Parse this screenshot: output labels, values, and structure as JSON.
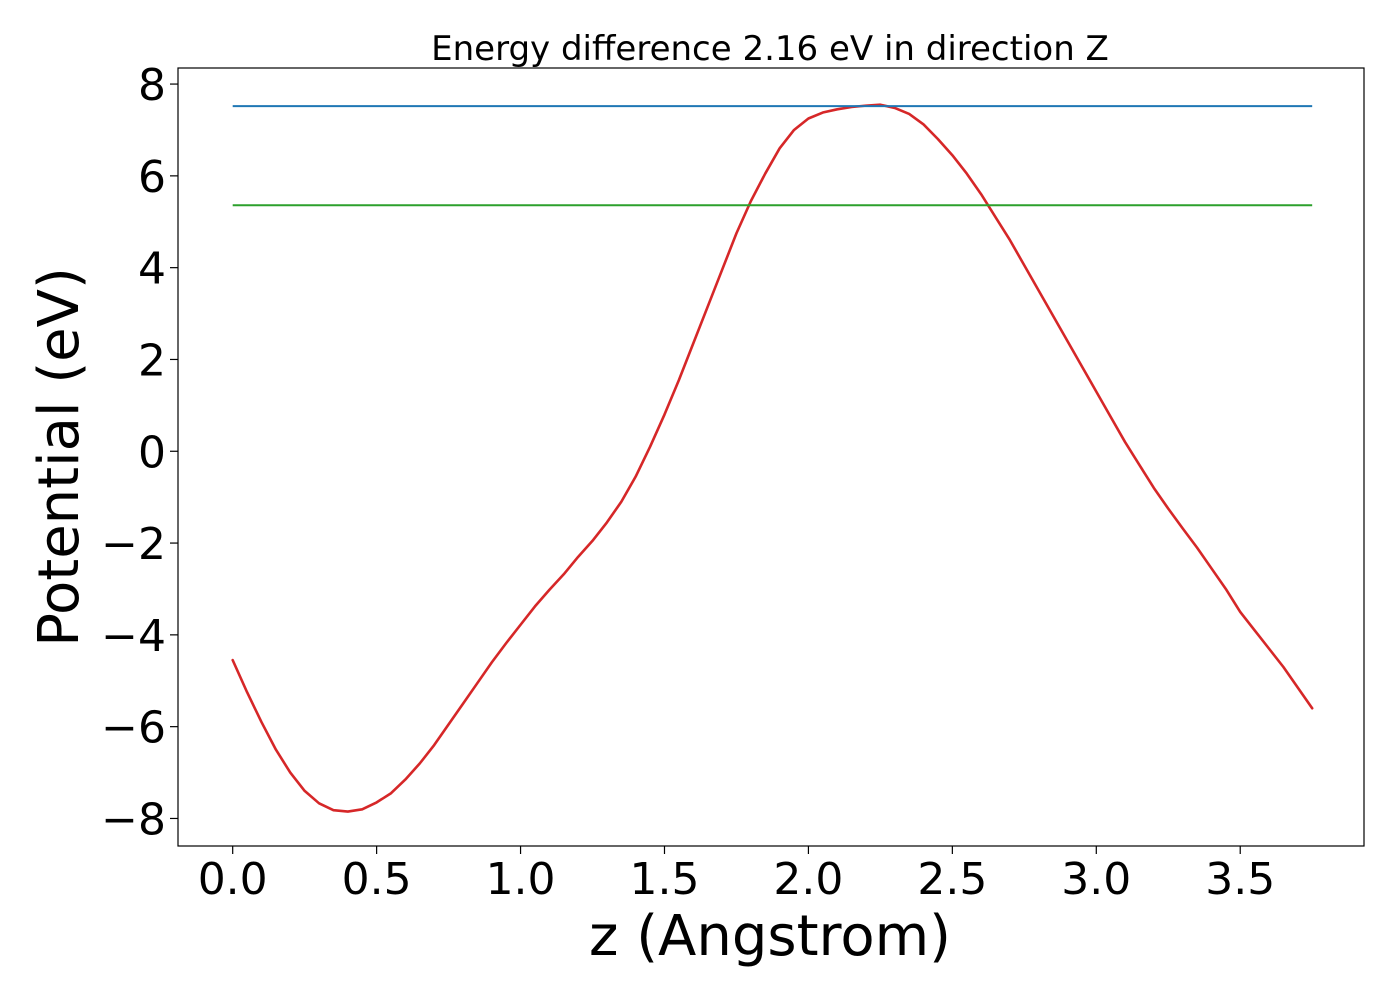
{
  "chart_data": {
    "type": "line",
    "title": "Energy difference 2.16 eV in direction Z",
    "xlabel": "z (Angstrom)",
    "ylabel": "Potential (eV)",
    "xlim": [
      -0.19,
      3.93
    ],
    "ylim": [
      -8.6,
      8.35
    ],
    "grid": false,
    "x_ticks": [
      0.0,
      0.5,
      1.0,
      1.5,
      2.0,
      2.5,
      3.0,
      3.5
    ],
    "x_tick_labels": [
      "0.0",
      "0.5",
      "1.0",
      "1.5",
      "2.0",
      "2.5",
      "3.0",
      "3.5"
    ],
    "y_ticks": [
      -8,
      -6,
      -4,
      -2,
      0,
      2,
      4,
      6,
      8
    ],
    "y_tick_labels": [
      "−8",
      "−6",
      "−4",
      "−2",
      "0",
      "2",
      "4",
      "6",
      "8"
    ],
    "series": [
      {
        "color": "#d62728",
        "style": "line",
        "x": [
          0.0,
          0.05,
          0.1,
          0.15,
          0.2,
          0.25,
          0.3,
          0.35,
          0.4,
          0.45,
          0.5,
          0.55,
          0.6,
          0.65,
          0.7,
          0.75,
          0.8,
          0.85,
          0.9,
          0.95,
          1.0,
          1.05,
          1.1,
          1.15,
          1.2,
          1.25,
          1.3,
          1.35,
          1.4,
          1.45,
          1.5,
          1.55,
          1.6,
          1.65,
          1.7,
          1.75,
          1.8,
          1.85,
          1.9,
          1.95,
          2.0,
          2.05,
          2.1,
          2.15,
          2.2,
          2.25,
          2.3,
          2.35,
          2.4,
          2.45,
          2.5,
          2.55,
          2.6,
          2.65,
          2.7,
          2.75,
          2.8,
          2.85,
          2.9,
          2.95,
          3.0,
          3.05,
          3.1,
          3.15,
          3.2,
          3.25,
          3.3,
          3.35,
          3.4,
          3.45,
          3.5,
          3.55,
          3.6,
          3.65,
          3.7,
          3.75
        ],
        "y": [
          -4.55,
          -5.25,
          -5.9,
          -6.5,
          -7.0,
          -7.4,
          -7.67,
          -7.82,
          -7.85,
          -7.8,
          -7.65,
          -7.45,
          -7.15,
          -6.8,
          -6.4,
          -5.95,
          -5.5,
          -5.05,
          -4.6,
          -4.18,
          -3.78,
          -3.38,
          -3.02,
          -2.68,
          -2.3,
          -1.95,
          -1.55,
          -1.1,
          -0.55,
          0.1,
          0.8,
          1.55,
          2.35,
          3.15,
          3.95,
          4.75,
          5.45,
          6.05,
          6.6,
          7.0,
          7.25,
          7.38,
          7.45,
          7.5,
          7.53,
          7.55,
          7.48,
          7.35,
          7.12,
          6.8,
          6.45,
          6.05,
          5.6,
          5.1,
          4.6,
          4.05,
          3.5,
          2.95,
          2.4,
          1.85,
          1.3,
          0.75,
          0.2,
          -0.3,
          -0.8,
          -1.25,
          -1.68,
          -2.1,
          -2.55,
          -3.0,
          -3.5,
          -3.9,
          -4.3,
          -4.7,
          -5.15,
          -5.6
        ]
      },
      {
        "color": "#1f77b4",
        "style": "hline",
        "y": 7.52,
        "x_range": [
          0.0,
          3.75
        ]
      },
      {
        "color": "#2ca02c",
        "style": "hline",
        "y": 5.36,
        "x_range": [
          0.0,
          3.75
        ]
      }
    ]
  }
}
